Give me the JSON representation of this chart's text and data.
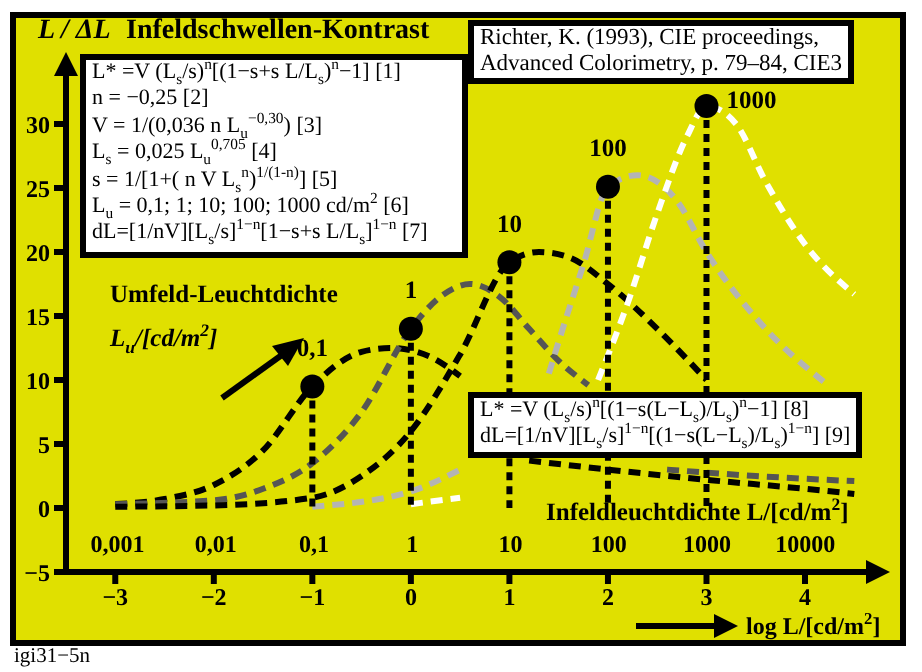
{
  "chart_data": {
    "type": "line",
    "title": "Infeldschwellen-Kontrast",
    "ylabel": "L / ΔL",
    "xlabel": "log L/[cd/m$^{2}$]",
    "x2label": "Infeldleuchtdichte L/[cd/m$^{2}$]",
    "xlim": [
      -3.5,
      4.7
    ],
    "xticks": [
      {
        "value": -3,
        "label": "−3"
      },
      {
        "value": -2,
        "label": "−2"
      },
      {
        "value": -1,
        "label": "−1"
      },
      0,
      1,
      2,
      3,
      4
    ],
    "x2lim": [
      0.0003,
      50000
    ],
    "x2ticks": [
      {
        "value": 0.001,
        "label": "0,001"
      },
      {
        "value": 0.01,
        "label": "0,01"
      },
      {
        "value": 0.1,
        "label": "0,1"
      },
      1,
      10,
      100,
      1000,
      10000
    ],
    "log": "x2",
    "ylim": [
      -5,
      35
    ],
    "yticks": [
      {
        "value": -5,
        "label": "−5"
      },
      0,
      5,
      10,
      15,
      20,
      25,
      30
    ],
    "line_style": "dashed",
    "series": [
      {
        "color": "#000000",
        "x": [
          -3,
          -2.5,
          -2,
          -1.5,
          -1,
          -0.5,
          -0.2,
          0.2,
          0.5,
          0.8,
          1.2,
          2,
          3,
          4,
          4.5
        ],
        "values": [
          0.3,
          0.7,
          1.8,
          4.5,
          9.5,
          12.2,
          12.5,
          11.8,
          10.3,
          null,
          3.7,
          3.0,
          2.2,
          1.5,
          1.1
        ]
      },
      {
        "color": "#555555",
        "x": [
          -3,
          -2,
          -1.5,
          -1,
          -0.5,
          0,
          0.3,
          0.6,
          0.9,
          1.2,
          1.5,
          1.8,
          2.3,
          2.6,
          3.5,
          4.5
        ],
        "values": [
          0.3,
          0.6,
          1.5,
          3.5,
          7.5,
          14,
          16.5,
          17.5,
          16.5,
          14,
          11.5,
          9.6,
          null,
          3.0,
          2.5,
          2.1
        ]
      },
      {
        "color": "#000000",
        "x": [
          -3,
          -2,
          -1,
          -0.5,
          0,
          0.5,
          1,
          1.3,
          1.6,
          2,
          2.5,
          3
        ],
        "values": [
          0.1,
          0.2,
          0.8,
          2.5,
          6,
          12,
          19.2,
          20,
          19.6,
          17.5,
          14,
          10
        ]
      },
      {
        "color": "#b4b4b4",
        "x": [
          -1,
          0,
          0.5,
          0.8,
          1.4,
          1.5,
          1.75,
          2,
          2.3,
          2.7,
          3,
          3.6,
          4.2
        ],
        "values": [
          0.1,
          1.3,
          3,
          null,
          10.5,
          13,
          19,
          25.1,
          26,
          24,
          20,
          14,
          9.8
        ]
      },
      {
        "color": "#ffffff",
        "x": [
          0,
          0.5,
          0.8,
          1.9,
          2.2,
          2.5,
          2.8,
          3,
          3.3,
          3.6,
          4,
          4.5
        ],
        "values": [
          0.3,
          0.8,
          null,
          10,
          16,
          23,
          29,
          31.4,
          30,
          25.5,
          20.6,
          16.7
        ]
      },
      {
        "type": "lollipop",
        "color": "#000000",
        "x": [
          -1,
          0,
          1,
          2,
          3
        ],
        "values": [
          9.5,
          14,
          19.2,
          25.1,
          31.4
        ]
      }
    ],
    "annotations": [
      "L* =V (L$_{s}$/s)$^{n}$[(1−s+s L/L$_{s}$)$^{n}$−1]   [1]",
      "n = −0,25   [2]",
      "V = 1/(0,036 n L$_{u}$$^{−0,30}$)   [3]",
      "L$_{s}$ = 0,025 L$_{u}$$^{0,705}$   [4]",
      "s = 1/[1+( n V L$_{s}$$^{n}$)$^{1/(1-n)}$]   [5]",
      "L$_{u}$ = 0,1; 1; 10; 100; 1000 cd/m$^{2}$   [6]",
      "dL=[1/nV][L$_{s}$/s]$^{1−n}$[1−s+s L/L$_{s}$]$^{1−n}$ [7]",
      "Richter, K. (1993), CIE proceedings,",
      "Advanced Colorimetry, p. 79–84, CIE3",
      "L* =V (L$_{s}$/s)$^{n}$[(1−s(L−L$_{s}$)/L$_{s}$)$^{n}$−1]   [8]",
      "dL=[1/nV][L$_{s}$/s]$^{1−n}$[(1−s(L−L$_{s}$)/L$_{s}$)$^{1−n}$] [9]",
      "Umfeld-Leuchtdichte",
      "L$_{u}$/[cd/m$^{2}$]",
      {
        "text": "0,1",
        "x": -1,
        "y": 9.5
      },
      {
        "text": "1",
        "x": 0,
        "y": 14
      },
      {
        "text": "10",
        "x": 1,
        "y": 19.2
      },
      {
        "text": "100",
        "x": 2,
        "y": 25.1
      },
      {
        "text": "1000",
        "x": 3,
        "y": 31.4
      },
      "igi31−5n"
    ]
  }
}
